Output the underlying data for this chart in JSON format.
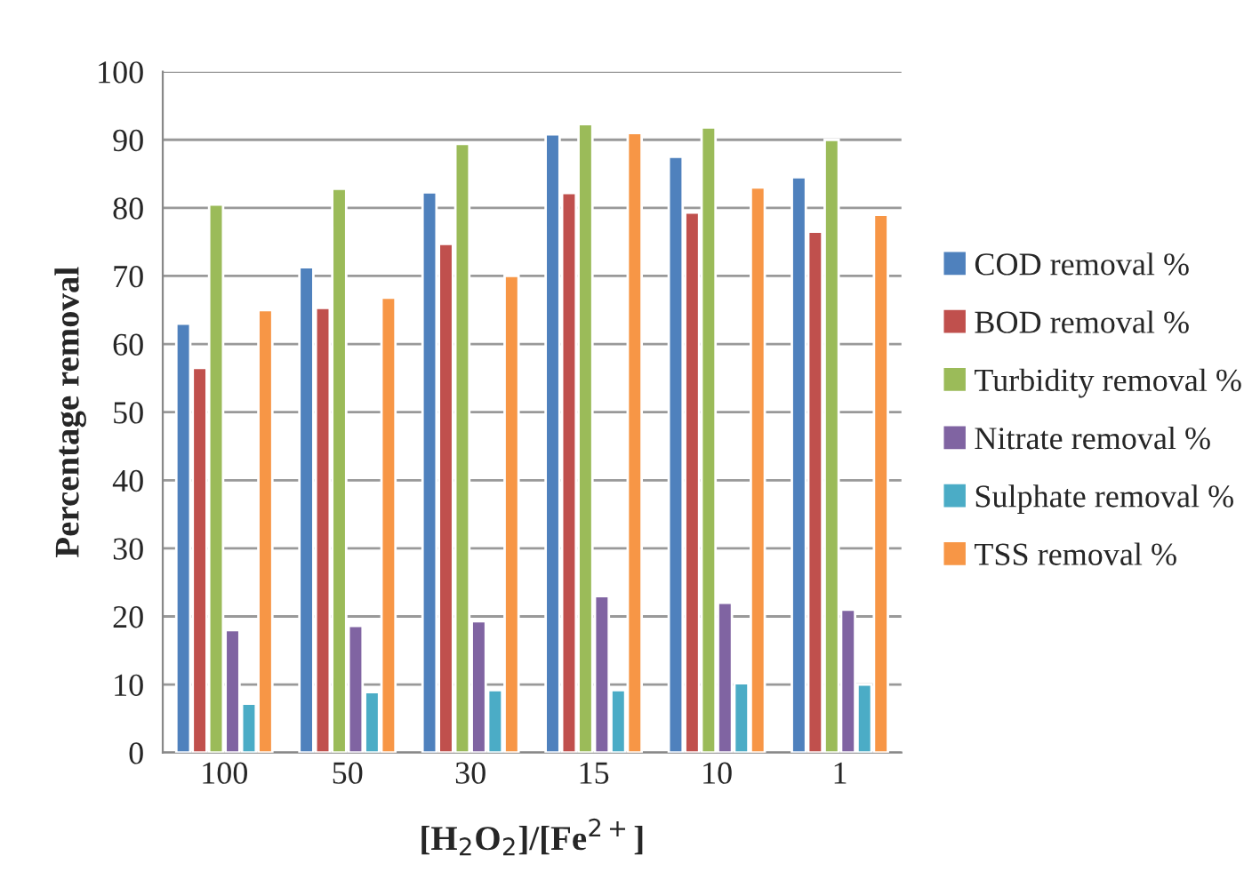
{
  "chart_data": {
    "type": "bar",
    "xlabel": "[H$_{2}$O$_{2}$]/[Fe$^{2+}$]",
    "ylabel": "Percentage removal",
    "categories": [
      "100",
      "50",
      "30",
      "15",
      "10",
      "1"
    ],
    "series": [
      {
        "name": "COD removal %",
        "color": "#4f81bd",
        "values": [
          63,
          71.3,
          82.3,
          90.8,
          87.5,
          84.5
        ]
      },
      {
        "name": "BOD removal %",
        "color": "#c0504d",
        "values": [
          56.5,
          65.3,
          74.7,
          82.2,
          79.3,
          76.5
        ]
      },
      {
        "name": "Turbidity removal %",
        "color": "#9bbb59",
        "values": [
          80.5,
          82.8,
          89.4,
          92.3,
          91.8,
          90
        ]
      },
      {
        "name": "Nitrate removal %",
        "color": "#8064a2",
        "values": [
          18,
          18.6,
          19.3,
          23,
          22,
          21
        ]
      },
      {
        "name": "Sulphate removal %",
        "color": "#4bacc6",
        "values": [
          7.2,
          8.9,
          9.2,
          9.2,
          10.2,
          10
        ]
      },
      {
        "name": "TSS removal %",
        "color": "#f79646",
        "values": [
          65,
          66.8,
          70,
          91,
          83,
          79
        ]
      }
    ],
    "ylim": [
      0,
      100
    ],
    "yticks": [
      0,
      10,
      20,
      30,
      40,
      50,
      60,
      70,
      80,
      90,
      100
    ],
    "grid": "y",
    "legend": "right"
  }
}
